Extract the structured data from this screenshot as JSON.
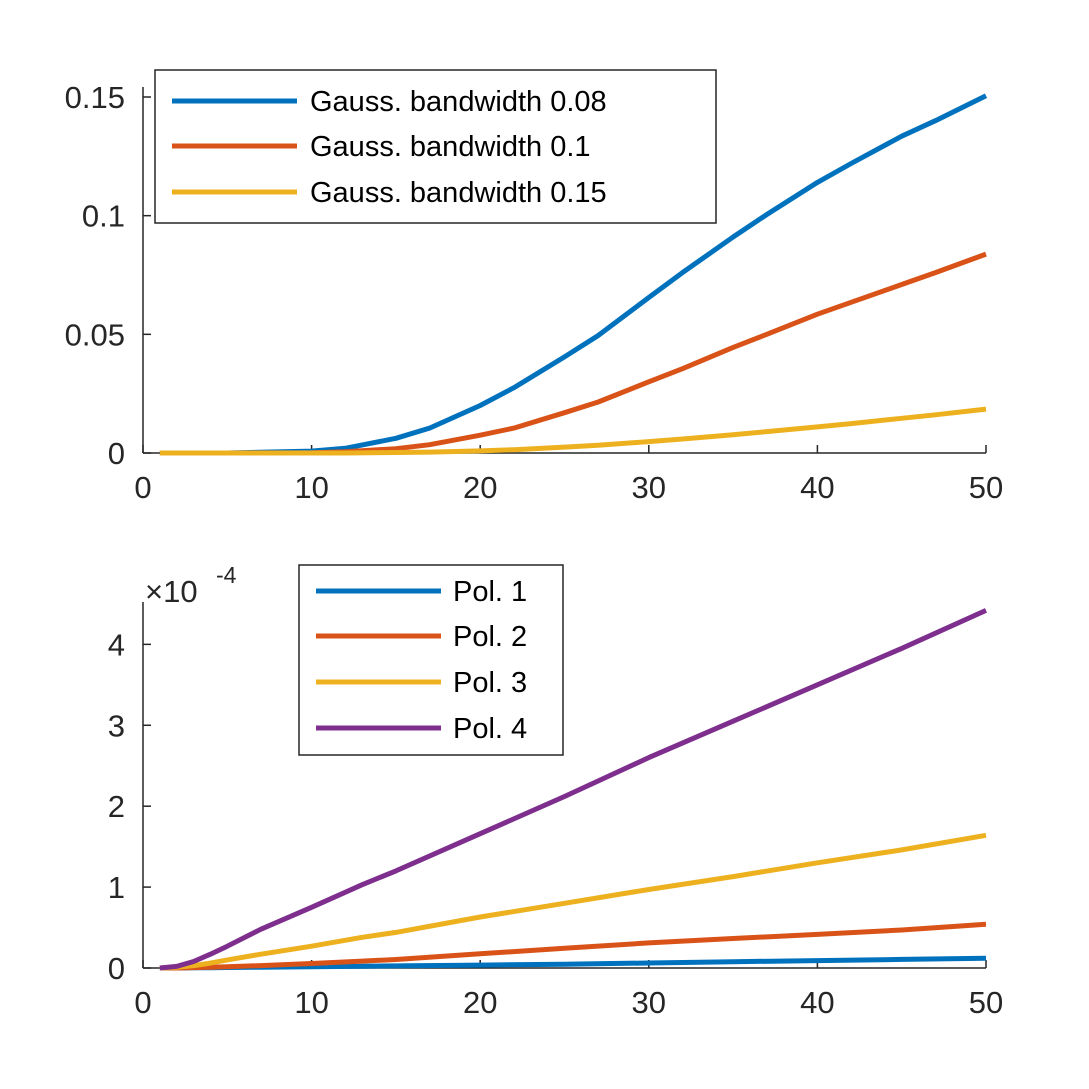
{
  "chart_data": [
    {
      "type": "line",
      "title": "",
      "xlabel": "",
      "ylabel": "",
      "xlim": [
        0,
        50
      ],
      "ylim": [
        0,
        0.15
      ],
      "xticks": [
        0,
        10,
        20,
        30,
        40,
        50
      ],
      "xtick_labels": [
        "0",
        "10",
        "20",
        "30",
        "40",
        "50"
      ],
      "yticks": [
        0,
        0.05,
        0.1,
        0.15
      ],
      "ytick_labels": [
        "0",
        "0.05",
        "0.1",
        "0.15"
      ],
      "legend_position": "top-left",
      "x": [
        1,
        5,
        10,
        12,
        15,
        17,
        20,
        22,
        25,
        27,
        30,
        32,
        35,
        37,
        40,
        42,
        45,
        47,
        50
      ],
      "series": [
        {
          "name": "Gauss. bandwidth 0.08",
          "color": "#0072bd",
          "values": [
            0,
            0,
            0.0008,
            0.002,
            0.0062,
            0.0105,
            0.02,
            0.0275,
            0.0405,
            0.0495,
            0.0655,
            0.076,
            0.091,
            0.1005,
            0.114,
            0.122,
            0.1335,
            0.14,
            0.1505
          ]
        },
        {
          "name": "Gauss. bandwidth 0.1",
          "color": "#d95319",
          "values": [
            0,
            0,
            0.0001,
            0.0005,
            0.0018,
            0.0035,
            0.0075,
            0.0105,
            0.017,
            0.0215,
            0.03,
            0.0355,
            0.0445,
            0.05,
            0.0585,
            0.0635,
            0.071,
            0.076,
            0.0838
          ]
        },
        {
          "name": "Gauss. bandwidth 0.15",
          "color": "#edb120",
          "values": [
            0,
            0,
            0,
            0,
            0.0002,
            0.0004,
            0.0009,
            0.0014,
            0.0025,
            0.0033,
            0.0048,
            0.0059,
            0.0077,
            0.009,
            0.011,
            0.0124,
            0.0146,
            0.0161,
            0.0185
          ]
        }
      ]
    },
    {
      "type": "line",
      "title": "",
      "xlabel": "",
      "ylabel": "",
      "xlim": [
        0,
        50
      ],
      "ylim": [
        0,
        4.4
      ],
      "y_scale_label": "×10",
      "y_scale_exponent": "-4",
      "xticks": [
        0,
        10,
        20,
        30,
        40,
        50
      ],
      "xtick_labels": [
        "0",
        "10",
        "20",
        "30",
        "40",
        "50"
      ],
      "yticks": [
        0,
        1,
        2,
        3,
        4
      ],
      "ytick_labels": [
        "0",
        "1",
        "2",
        "3",
        "4"
      ],
      "legend_position": "top-center",
      "x": [
        1,
        2,
        3,
        4,
        5,
        7,
        10,
        13,
        15,
        20,
        25,
        30,
        35,
        40,
        45,
        50
      ],
      "series": [
        {
          "name": "Pol. 1",
          "color": "#0072bd",
          "values": [
            0,
            0,
            0.002,
            0.004,
            0.006,
            0.01,
            0.016,
            0.022,
            0.026,
            0.036,
            0.047,
            0.062,
            0.078,
            0.092,
            0.106,
            0.12
          ]
        },
        {
          "name": "Pol. 2",
          "color": "#d95319",
          "values": [
            0,
            0,
            0.005,
            0.01,
            0.016,
            0.03,
            0.055,
            0.085,
            0.105,
            0.175,
            0.245,
            0.31,
            0.365,
            0.415,
            0.47,
            0.54
          ]
        },
        {
          "name": "Pol. 3",
          "color": "#edb120",
          "values": [
            0,
            0.01,
            0.03,
            0.06,
            0.1,
            0.17,
            0.27,
            0.38,
            0.44,
            0.63,
            0.8,
            0.97,
            1.13,
            1.3,
            1.46,
            1.64
          ]
        },
        {
          "name": "Pol. 4",
          "color": "#7e2f8e",
          "values": [
            0,
            0.02,
            0.08,
            0.17,
            0.27,
            0.48,
            0.75,
            1.03,
            1.2,
            1.66,
            2.12,
            2.6,
            3.05,
            3.5,
            3.95,
            4.42
          ]
        }
      ]
    }
  ]
}
